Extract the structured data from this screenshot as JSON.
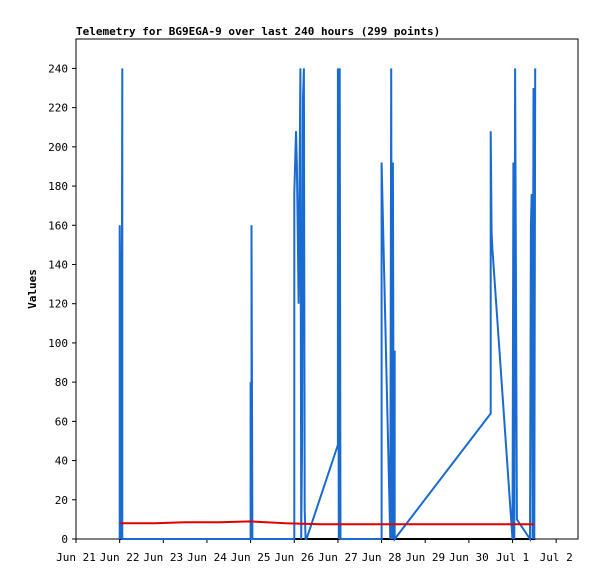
{
  "chart_data": {
    "type": "line",
    "title": "Telemetry for BG9EGA-9 over last 240 hours (299 points)",
    "xlabel": "",
    "ylabel": "Values",
    "ylim": [
      0,
      255
    ],
    "yticks": [
      0,
      20,
      40,
      60,
      80,
      100,
      120,
      140,
      160,
      180,
      200,
      220,
      240
    ],
    "xticks": [
      "Jun 21",
      "Jun 22",
      "Jun 23",
      "Jun 24",
      "Jun 25",
      "Jun 26",
      "Jun 27",
      "Jun 28",
      "Jun 29",
      "Jun 30",
      "Jul 1",
      "Jul 2"
    ],
    "xlim_days": [
      0,
      11.5
    ],
    "grid": false,
    "legend": "none",
    "colors": {
      "series1": "#1a6bd1",
      "series2": "#e00000",
      "baseline": "#000000"
    },
    "series": [
      {
        "x": [
          1.0,
          1.0,
          1.02,
          1.04,
          1.06,
          1.06,
          1.08,
          4.0,
          4.0,
          4.02,
          4.02,
          4.04,
          5.0,
          5.0,
          5.04,
          5.06,
          5.08,
          5.1,
          5.14,
          5.16,
          5.18,
          5.2,
          5.22,
          5.24,
          5.26,
          5.28,
          6.0,
          6.0,
          6.02,
          6.04,
          6.06,
          7.0,
          7.0,
          7.2,
          7.22,
          7.24,
          7.26,
          7.28,
          7.3,
          7.3,
          9.5,
          9.5,
          9.52,
          9.54,
          10.0,
          10.02,
          10.04,
          10.06,
          10.1,
          10.4,
          10.42,
          10.44,
          10.46,
          10.48,
          10.5,
          10.52
        ],
        "values": [
          0,
          160,
          112,
          0,
          240,
          0,
          0,
          0,
          80,
          0,
          160,
          0,
          0,
          176,
          208,
          190,
          155,
          120,
          240,
          0,
          50,
          225,
          240,
          15,
          0,
          0,
          48,
          240,
          0,
          240,
          0,
          0,
          192,
          0,
          240,
          0,
          192,
          0,
          96,
          0,
          64,
          208,
          156,
          148,
          0,
          192,
          0,
          240,
          10,
          0,
          160,
          176,
          0,
          230,
          0,
          240
        ]
      },
      {
        "x": [
          1.0,
          1.8,
          2.5,
          3.3,
          4.0,
          4.8,
          5.6,
          6.4,
          7.2,
          8.0,
          8.8,
          9.6,
          10.2,
          10.5
        ],
        "values": [
          8,
          8,
          8.5,
          8.5,
          9,
          8,
          7.5,
          7.5,
          7.5,
          7.5,
          7.5,
          7.5,
          7.5,
          7.5
        ]
      }
    ]
  }
}
